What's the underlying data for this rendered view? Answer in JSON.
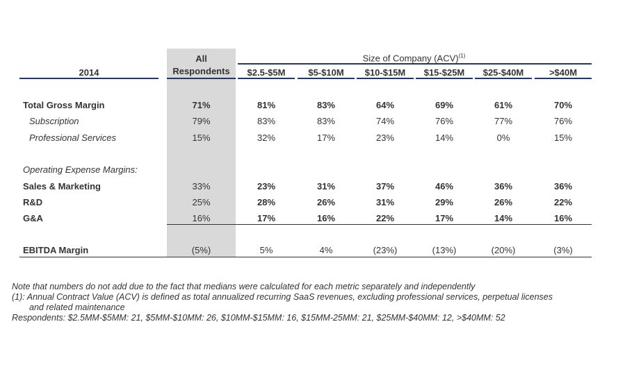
{
  "header": {
    "year": "2014",
    "all_line1": "All",
    "all_line2": "Respondents",
    "size_group": "Size of Company (ACV)",
    "size_group_sup": "(1)",
    "columns": [
      "$2.5-$5M",
      "$5-$10M",
      "$10-$15M",
      "$15-$25M",
      "$25-$40M",
      ">$40M"
    ]
  },
  "rows": [
    {
      "label": "Total Gross Margin",
      "style": "bold",
      "values": [
        "71%",
        "81%",
        "83%",
        "64%",
        "69%",
        "61%",
        "70%"
      ]
    },
    {
      "label": "Subscription",
      "style": "italic-indent",
      "values": [
        "79%",
        "83%",
        "83%",
        "74%",
        "76%",
        "77%",
        "76%"
      ]
    },
    {
      "label": "Professional Services",
      "style": "italic-indent",
      "values": [
        "15%",
        "32%",
        "17%",
        "23%",
        "14%",
        "0%",
        "15%"
      ]
    },
    {
      "label": "Operating Expense Margins:",
      "style": "italic",
      "values": [
        "",
        "",
        "",
        "",
        "",
        "",
        ""
      ]
    },
    {
      "label": "Sales & Marketing",
      "style": "bold",
      "values": [
        "33%",
        "23%",
        "31%",
        "37%",
        "46%",
        "36%",
        "36%"
      ]
    },
    {
      "label": "R&D",
      "style": "bold",
      "values": [
        "25%",
        "28%",
        "26%",
        "31%",
        "29%",
        "26%",
        "22%"
      ]
    },
    {
      "label": "G&A",
      "style": "bold",
      "values": [
        "16%",
        "17%",
        "16%",
        "22%",
        "17%",
        "14%",
        "16%"
      ]
    },
    {
      "label": "EBITDA Margin",
      "style": "bold",
      "values": [
        "(5%)",
        "5%",
        "4%",
        "(23%)",
        "(13%)",
        "(20%)",
        "(3%)"
      ]
    }
  ],
  "notes": [
    "Note that numbers do not add due to the fact that medians were calculated for each metric separately and independently",
    "(1): Annual Contract Value (ACV) is defined as total annualized recurring SaaS revenues, excluding professional services, perpetual licenses",
    "and related maintenance",
    "Respondents: $2.5MM-$5MM: 21, $5MM-$10MM: 26, $10MM-$15MM: 16, $15MM-25MM: 21, $25MM-$40MM: 12, >$40MM: 52"
  ],
  "colors": {
    "header_navy": "#1f3864",
    "all_column_bg": "#d9d9d9",
    "text": "#333333"
  }
}
